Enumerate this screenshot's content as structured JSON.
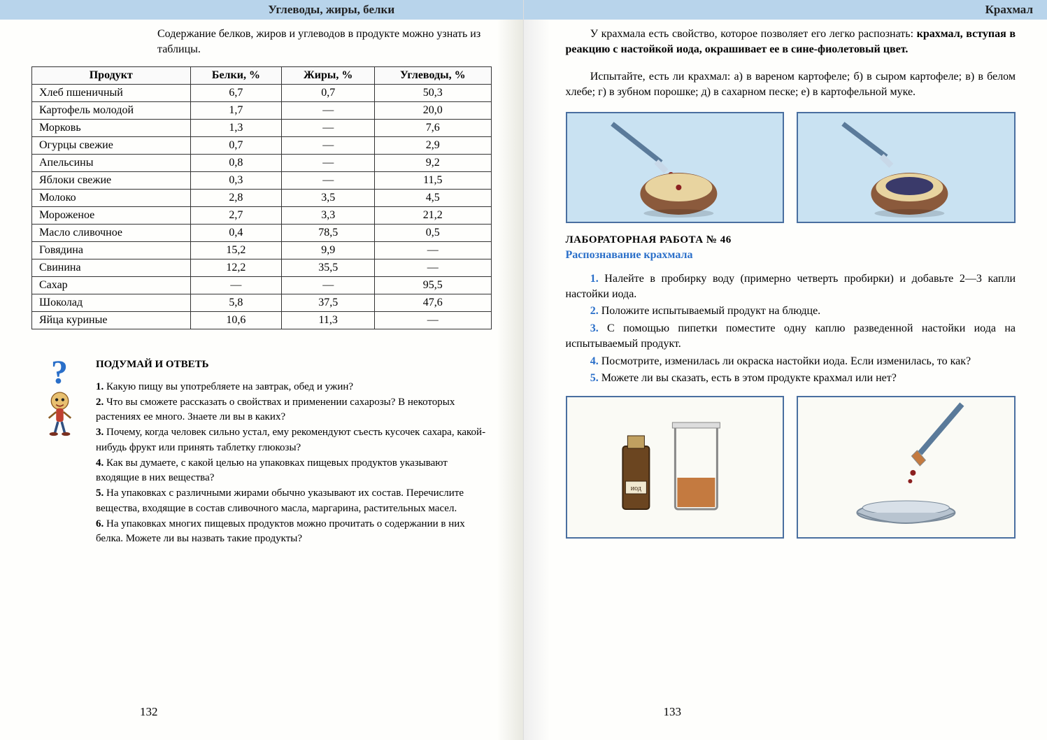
{
  "leftHeader": "Углеводы, жиры, белки",
  "rightHeader": "Крахмал",
  "intro": "Содержание белков, жиров и углеводов в продукте можно узнать из таблицы.",
  "table": {
    "columns": [
      "Продукт",
      "Белки, %",
      "Жиры, %",
      "Углеводы, %"
    ],
    "rows": [
      [
        "Хлеб пшеничный",
        "6,7",
        "0,7",
        "50,3"
      ],
      [
        "Картофель молодой",
        "1,7",
        "—",
        "20,0"
      ],
      [
        "Морковь",
        "1,3",
        "—",
        "7,6"
      ],
      [
        "Огурцы свежие",
        "0,7",
        "—",
        "2,9"
      ],
      [
        "Апельсины",
        "0,8",
        "—",
        "9,2"
      ],
      [
        "Яблоки свежие",
        "0,3",
        "—",
        "11,5"
      ],
      [
        "Молоко",
        "2,8",
        "3,5",
        "4,5"
      ],
      [
        "Мороженое",
        "2,7",
        "3,3",
        "21,2"
      ],
      [
        "Масло сливочное",
        "0,4",
        "78,5",
        "0,5"
      ],
      [
        "Говядина",
        "15,2",
        "9,9",
        "—"
      ],
      [
        "Свинина",
        "12,2",
        "35,5",
        "—"
      ],
      [
        "Сахар",
        "—",
        "—",
        "95,5"
      ],
      [
        "Шоколад",
        "5,8",
        "37,5",
        "47,6"
      ],
      [
        "Яйца куриные",
        "10,6",
        "11,3",
        "—"
      ]
    ]
  },
  "thinkTitle": "ПОДУМАЙ И ОТВЕТЬ",
  "questions": [
    "Какую пищу вы употребляете на завтрак, обед и ужин?",
    "Что вы сможете рассказать о свойствах и применении сахарозы? В некоторых растениях ее много. Знаете ли вы в каких?",
    "Почему, когда человек сильно устал, ему рекомендуют съесть кусочек сахара, какой-нибудь фрукт или принять таблетку глюкозы?",
    "Как вы думаете, с какой целью на упаковках пищевых продуктов указывают входящие в них вещества?",
    "На упаковках с различными жирами обычно указывают их состав. Перечислите вещества, входящие в состав сливочного масла, маргарина, растительных масел.",
    "На упаковках многих пищевых продуктов можно прочитать о содержании в них белка. Можете ли вы назвать такие продукты?"
  ],
  "leftPageNum": "132",
  "rightPageNum": "133",
  "rpIntroBold1": "крахмал, вступая в реакцию с настойкой иода, окрашивает ее в сине-фиолетовый цвет.",
  "rpIntroA": "У крахмала есть свойство, которое позволяет его легко распознать: ",
  "rpTest": "Испытайте, есть ли крахмал: а) в вареном картофеле; б) в сыром картофеле; в) в белом хлебе; г) в зубном порошке; д) в сахарном песке; е) в картофельной муке.",
  "labTitle": "ЛАБОРАТОРНАЯ РАБОТА № 46",
  "labSub": "Распознавание крахмала",
  "steps": [
    "Налейте в пробирку воду (примерно четверть пробирки) и добавьте 2—3 капли настойки иода.",
    "Положите испытываемый продукт на блюдце.",
    "С помощью пипетки поместите одну каплю разведенной настойки иода на испытываемый продукт.",
    "Посмотрите, изменилась ли окраска настойки иода. Если изменилась, то как?",
    "Можете ли вы сказать, есть в этом продукте крахмал или нет?"
  ],
  "iodLabel": "иод",
  "colors": {
    "headerBg": "#b8d4eb",
    "accent": "#2a6fc9",
    "border": "#333333",
    "imgBorder": "#4a6fa0",
    "imgBg1": "#c9e2f2",
    "imgBg2": "#fafaf5",
    "potato": "#8b5a3c",
    "potatoInner": "#e8d4a0",
    "pipette": "#5a7a9a",
    "iodine": "#8b3020",
    "bottle": "#6b4520",
    "dish": "#b8c4d0"
  }
}
